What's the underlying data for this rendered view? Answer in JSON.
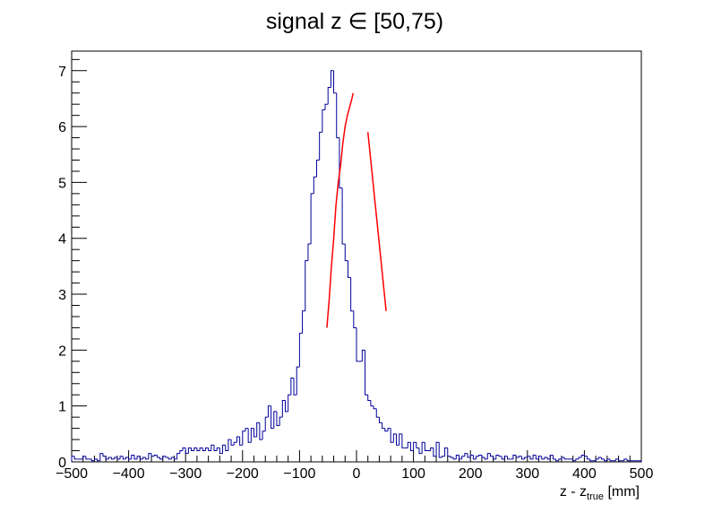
{
  "chart_data": {
    "type": "bar",
    "title_main": "signal z ",
    "title_symbol": "∈",
    "title_range": " [50,75)",
    "xlabel_main": "z - z",
    "xlabel_sub": "true",
    "xlabel_unit": " [mm]",
    "ylabel": "",
    "xlim": [
      -500,
      500
    ],
    "ylim": [
      0,
      7.35
    ],
    "x_ticks": [
      -500,
      -400,
      -300,
      -200,
      -100,
      0,
      100,
      200,
      300,
      400,
      500
    ],
    "x_tick_labels": [
      "−500",
      "−400",
      "−300",
      "−200",
      "−100",
      "0",
      "100",
      "200",
      "300",
      "400",
      "500"
    ],
    "y_ticks": [
      0,
      1,
      2,
      3,
      4,
      5,
      6,
      7
    ],
    "y_tick_labels": [
      "0",
      "1",
      "2",
      "3",
      "4",
      "5",
      "6",
      "7"
    ],
    "bin_width": 5,
    "histogram": {
      "color": "#000099",
      "x_start": -500,
      "values": [
        0.1,
        0.05,
        0.05,
        0.05,
        0.1,
        0.05,
        0.05,
        0.02,
        0.05,
        0.02,
        0.15,
        0.1,
        0.05,
        0.08,
        0.05,
        0.08,
        0.05,
        0.1,
        0.05,
        0.08,
        0.05,
        0.12,
        0.05,
        0.1,
        0.05,
        0.08,
        0.05,
        0.15,
        0.1,
        0.12,
        0.08,
        0.05,
        0.1,
        0.08,
        0.05,
        0.08,
        0.05,
        0.15,
        0.2,
        0.25,
        0.15,
        0.25,
        0.2,
        0.25,
        0.2,
        0.25,
        0.2,
        0.25,
        0.2,
        0.3,
        0.2,
        0.25,
        0.15,
        0.3,
        0.2,
        0.4,
        0.3,
        0.35,
        0.45,
        0.3,
        0.55,
        0.6,
        0.35,
        0.6,
        0.45,
        0.7,
        0.4,
        0.55,
        0.8,
        1.0,
        0.6,
        0.9,
        0.65,
        0.8,
        1.1,
        0.9,
        1.2,
        1.5,
        1.2,
        1.7,
        2.3,
        2.7,
        3.6,
        3.9,
        4.8,
        5.1,
        5.4,
        5.9,
        6.3,
        6.4,
        6.7,
        7.0,
        6.6,
        5.8,
        4.9,
        3.9,
        3.6,
        3.3,
        2.7,
        2.4,
        1.8,
        1.8,
        2.0,
        1.2,
        1.1,
        1.0,
        0.95,
        0.8,
        0.7,
        0.6,
        0.55,
        0.6,
        0.35,
        0.5,
        0.3,
        0.5,
        0.25,
        0.25,
        0.35,
        0.2,
        0.35,
        0.25,
        0.15,
        0.35,
        0.2,
        0.2,
        0.25,
        0.1,
        0.35,
        0.08,
        0.1,
        0.25,
        0.1,
        0.08,
        0.05,
        0.12,
        0.05,
        0.1,
        0.15,
        0.08,
        0.12,
        0.05,
        0.1,
        0.12,
        0.08,
        0.05,
        0.15,
        0.1,
        0.05,
        0.12,
        0.1,
        0.05,
        0.1,
        0.05,
        0.05,
        0.12,
        0.08,
        0.1,
        0.05,
        0.08,
        0.1,
        0.05,
        0.12,
        0.05,
        0.1,
        0.05,
        0.08,
        0.05,
        0.12,
        0.05,
        0.02,
        0.05,
        0.08,
        0.05,
        0.05,
        0.05,
        0.02,
        0.05,
        0.08,
        0.12,
        0.1,
        0.05,
        0.02,
        0.02,
        0.05,
        0.08,
        0.05,
        0.02,
        0.05,
        0.02,
        0.02,
        0.05,
        0.02,
        0.02,
        0.05,
        0.02,
        0.02,
        0.02,
        0.02,
        0.02
      ]
    },
    "fit": {
      "color": "#ff0000",
      "x": [
        -52,
        -48,
        -44,
        -40,
        -36,
        -32,
        -28,
        -24,
        -20,
        -16,
        -12,
        -8,
        -6
      ],
      "y": [
        2.4,
        2.9,
        3.5,
        4.0,
        4.6,
        5.0,
        5.3,
        5.7,
        6.0,
        6.2,
        6.35,
        6.5,
        6.6
      ],
      "x2": [
        20,
        24,
        28,
        32,
        36,
        40,
        44,
        48,
        52
      ],
      "y2": [
        5.9,
        5.5,
        5.1,
        4.7,
        4.3,
        3.9,
        3.5,
        3.1,
        2.7
      ]
    }
  }
}
